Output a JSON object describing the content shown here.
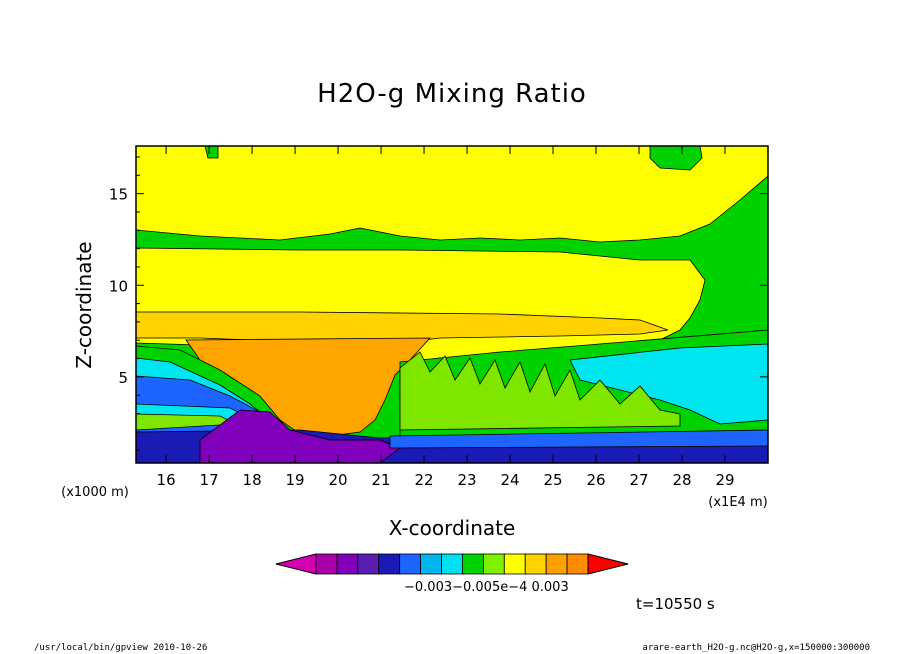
{
  "chart_data": {
    "type": "heatmap",
    "title": "H2O-g Mixing Ratio",
    "xlabel": "X-coordinate",
    "ylabel": "Z-coordinate",
    "x_unit_label": "(x1E4 m)",
    "z_unit_label": "(x1000 m)",
    "xlim": [
      15.3,
      30.0
    ],
    "ylim": [
      0.3,
      17.6
    ],
    "x_ticks": [
      "16",
      "17",
      "18",
      "19",
      "20",
      "21",
      "22",
      "23",
      "24",
      "25",
      "26",
      "27",
      "28",
      "29"
    ],
    "y_ticks": [
      "5",
      "10",
      "15"
    ],
    "colorbar": {
      "labels": [
        "-0.003",
        "-0.005e-4",
        "0.003"
      ],
      "label_text": "−0.003−0.005e−4   0.003",
      "colors": [
        "#d400b4",
        "#aa00aa",
        "#8000bb",
        "#5a1fb0",
        "#1a1ab4",
        "#1e64ff",
        "#00b4f0",
        "#00e0f0",
        "#00d200",
        "#7ff000",
        "#ffff00",
        "#ffd200",
        "#ffa000",
        "#ff8c00",
        "#ff0000"
      ]
    },
    "time_label": "t=10550 s",
    "footer_left": "/usr/local/bin/gpview  2010-10-26",
    "footer_right": "arare-earth_H2O-g.nc@H2O-g,x=150000:300000",
    "layer_colors": {
      "yellow": "#ffff00",
      "light_orange": "#ffd200",
      "orange": "#ffa500",
      "green": "#00d200",
      "light_green": "#7fe600",
      "cyan": "#00e6f0",
      "blue": "#1e64ff",
      "dark_blue": "#1a1ab4",
      "purple": "#8000bb",
      "magenta": "#b400b4"
    }
  }
}
